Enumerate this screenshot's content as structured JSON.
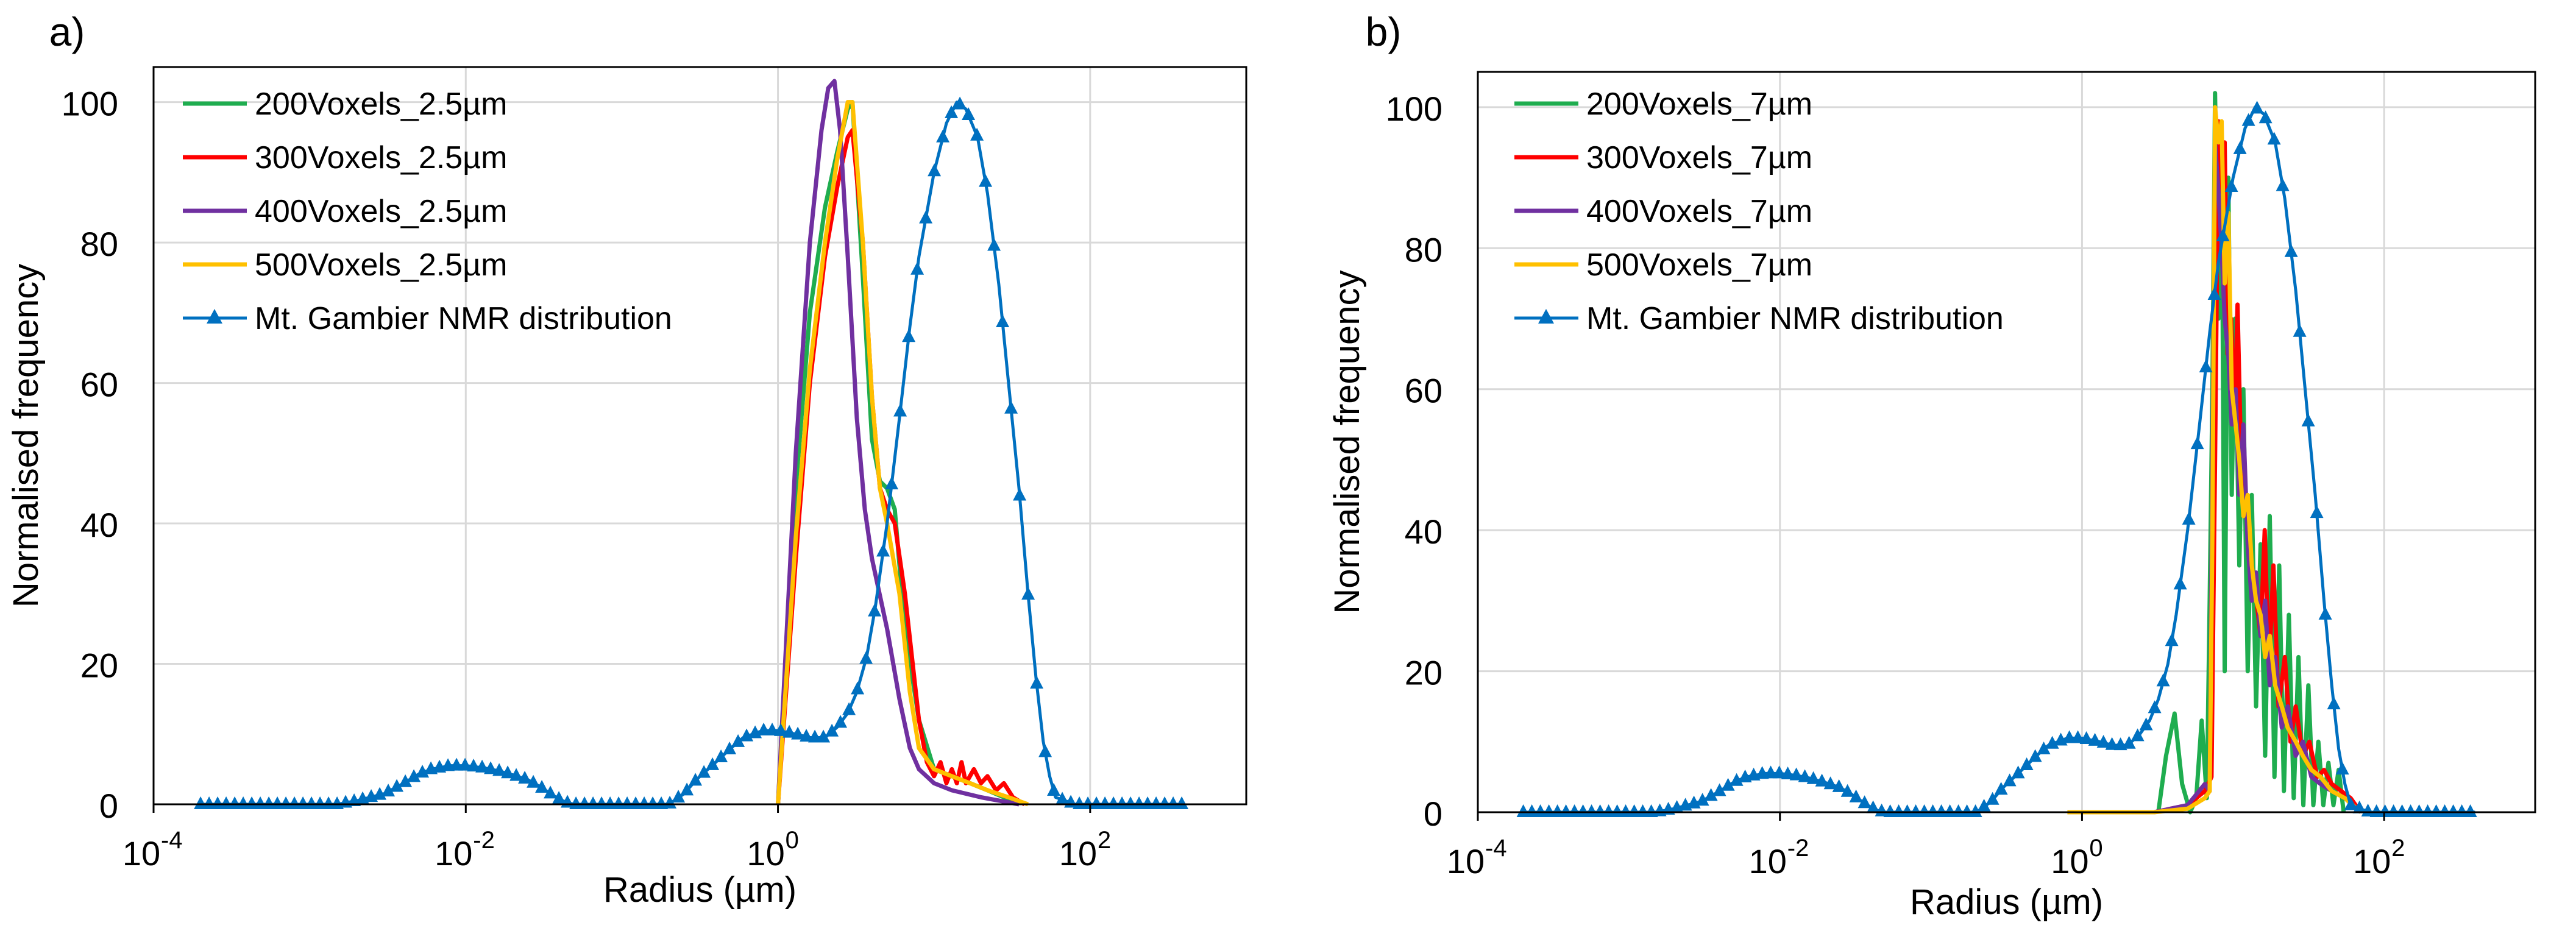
{
  "chart_data": [
    {
      "panel_label": "a)",
      "type": "line",
      "x_scale": "log",
      "xlabel": "Radius (µm)",
      "ylabel": "Normalised frequency",
      "xlim": [
        0.0001,
        1000
      ],
      "ylim": [
        0,
        105
      ],
      "x_ticks": [
        {
          "base": "10",
          "exp": "-4",
          "value": 0.0001
        },
        {
          "base": "10",
          "exp": "-2",
          "value": 0.01
        },
        {
          "base": "10",
          "exp": "0",
          "value": 1
        },
        {
          "base": "10",
          "exp": "2",
          "value": 100
        }
      ],
      "y_ticks": [
        "0",
        "20",
        "40",
        "60",
        "80",
        "100"
      ],
      "grid": true,
      "legend_position": "top-left",
      "series": [
        {
          "name": "200Voxels_2.5µm",
          "color": "#1fad4f",
          "marker": "none",
          "x": [
            1.0,
            1.3,
            1.6,
            2.0,
            2.4,
            2.8,
            3.0,
            3.5,
            4.0,
            4.5,
            5.0,
            5.6,
            6.5,
            8,
            10,
            13,
            17,
            22,
            28,
            35
          ],
          "y": [
            0,
            45,
            70,
            85,
            93,
            99,
            100,
            75,
            52,
            46,
            45,
            42,
            25,
            12,
            5,
            4,
            3,
            2,
            1,
            0
          ]
        },
        {
          "name": "300Voxels_2.5µm",
          "color": "#ff0000",
          "marker": "none",
          "x": [
            1.0,
            1.3,
            1.6,
            2.0,
            2.4,
            2.8,
            3.0,
            3.5,
            4.0,
            4.5,
            5.0,
            5.6,
            6.5,
            8,
            9,
            10,
            11,
            12,
            13,
            14,
            15,
            16,
            18,
            20,
            22,
            25,
            28,
            32,
            38
          ],
          "y": [
            0,
            35,
            60,
            78,
            88,
            95,
            96,
            80,
            58,
            45,
            42,
            40,
            30,
            12,
            6,
            4,
            6,
            3,
            5,
            3,
            6,
            3,
            5,
            3,
            4,
            2,
            3,
            1,
            0
          ]
        },
        {
          "name": "400Voxels_2.5µm",
          "color": "#7030a0",
          "marker": "none",
          "x": [
            1.0,
            1.3,
            1.6,
            1.9,
            2.1,
            2.3,
            2.5,
            2.8,
            3.2,
            3.6,
            4.0,
            5.0,
            6.0,
            7.0,
            8.0,
            10,
            13,
            20,
            35
          ],
          "y": [
            0,
            50,
            80,
            96,
            102,
            103,
            96,
            78,
            55,
            42,
            35,
            25,
            15,
            8,
            5,
            3,
            2,
            1,
            0
          ]
        },
        {
          "name": "500Voxels_2.5µm",
          "color": "#ffc000",
          "marker": "none",
          "x": [
            1.0,
            1.3,
            1.6,
            2.0,
            2.4,
            2.8,
            3.0,
            3.5,
            4.0,
            4.5,
            5.0,
            6.0,
            7.0,
            8.0,
            10,
            13,
            17,
            22,
            30,
            40
          ],
          "y": [
            0,
            38,
            62,
            80,
            92,
            100,
            100,
            80,
            58,
            45,
            40,
            30,
            16,
            8,
            5,
            4,
            3,
            2,
            1,
            0
          ]
        },
        {
          "name": "Mt. Gambier NMR distribution",
          "color": "#0070c0",
          "marker": "triangle",
          "x": [
            0.0002,
            0.0004,
            0.0007,
            0.001,
            0.0015,
            0.002,
            0.003,
            0.004,
            0.005,
            0.006,
            0.008,
            0.01,
            0.013,
            0.016,
            0.02,
            0.025,
            0.03,
            0.035,
            0.04,
            0.045,
            0.05,
            0.06,
            0.1,
            0.15,
            0.2,
            0.25,
            0.3,
            0.4,
            0.5,
            0.6,
            0.8,
            1.0,
            1.3,
            1.6,
            2.0,
            2.4,
            2.8,
            3.2,
            3.7,
            4.2,
            5,
            6,
            7,
            8,
            10,
            12,
            14,
            16,
            19,
            22,
            26,
            30,
            35,
            40,
            45,
            50,
            55,
            60,
            80,
            120,
            200,
            400
          ],
          "y": [
            0,
            0,
            0,
            0,
            0,
            0.5,
            1.5,
            3,
            4.3,
            5,
            5.5,
            5.5,
            5.2,
            4.8,
            4.2,
            3.5,
            2.5,
            1.5,
            0.7,
            0.2,
            0,
            0,
            0,
            0,
            0,
            1.5,
            3.5,
            6,
            8,
            9.5,
            10.5,
            10.5,
            10,
            9.5,
            9.5,
            11,
            13,
            16,
            21,
            28,
            40,
            55,
            68,
            78,
            90,
            97,
            100,
            99,
            95,
            87,
            74,
            60,
            45,
            30,
            18,
            9,
            4,
            1,
            0,
            0,
            0,
            0
          ]
        }
      ]
    },
    {
      "panel_label": "b)",
      "type": "line",
      "x_scale": "log",
      "xlabel": "Radius (µm)",
      "ylabel": "Normalised frequency",
      "xlim": [
        0.0001,
        1000
      ],
      "ylim": [
        0,
        105
      ],
      "x_ticks": [
        {
          "base": "10",
          "exp": "-4",
          "value": 0.0001
        },
        {
          "base": "10",
          "exp": "-2",
          "value": 0.01
        },
        {
          "base": "10",
          "exp": "0",
          "value": 1
        },
        {
          "base": "10",
          "exp": "2",
          "value": 100
        }
      ],
      "y_ticks": [
        "0",
        "20",
        "40",
        "60",
        "80",
        "100"
      ],
      "grid": true,
      "legend_position": "top-left",
      "series": [
        {
          "name": "200Voxels_7µm",
          "color": "#1fad4f",
          "marker": "none",
          "x": [
            3.2,
            3.6,
            4.1,
            4.6,
            5.2,
            5.7,
            6.2,
            6.7,
            7.0,
            7.3,
            7.6,
            8.0,
            8.4,
            8.8,
            9.3,
            9.8,
            10.3,
            11.0,
            11.7,
            12.5,
            13.3,
            14.2,
            15.2,
            16.3,
            17.5,
            18.8,
            20.2,
            21.7,
            23.4,
            25.2,
            27.1,
            29.2,
            31.5,
            34.0,
            36.7,
            39.6,
            42.8,
            46.2,
            50,
            54
          ],
          "y": [
            0,
            8,
            14,
            4,
            0,
            2,
            13,
            2,
            30,
            60,
            102,
            70,
            95,
            20,
            90,
            45,
            70,
            35,
            60,
            20,
            45,
            15,
            38,
            8,
            42,
            5,
            35,
            3,
            28,
            2,
            22,
            1,
            18,
            1,
            10,
            1,
            7,
            1,
            6,
            0
          ]
        },
        {
          "name": "300Voxels_7µm",
          "color": "#ff0000",
          "marker": "none",
          "x": [
            1.0,
            3.0,
            5.0,
            6.5,
            7.2,
            7.6,
            8.0,
            8.4,
            8.8,
            9.2,
            9.7,
            10.2,
            10.7,
            11.3,
            12.0,
            12.7,
            13.5,
            14.3,
            15.2,
            16.2,
            17.3,
            18.5,
            20,
            22,
            24,
            26,
            29,
            32,
            36,
            40,
            45,
            52,
            60,
            70
          ],
          "y": [
            0,
            0,
            1,
            3,
            5,
            50,
            98,
            88,
            95,
            65,
            70,
            55,
            72,
            50,
            45,
            38,
            34,
            30,
            25,
            40,
            20,
            35,
            15,
            22,
            10,
            15,
            8,
            10,
            5,
            6,
            4,
            3,
            2,
            0
          ]
        },
        {
          "name": "400Voxels_7µm",
          "color": "#7030a0",
          "marker": "none",
          "x": [
            1.0,
            3.0,
            5.0,
            6.5,
            7.0,
            7.3,
            7.6,
            8.0,
            8.4,
            8.8,
            9.3,
            9.8,
            10.4,
            11.0,
            11.7,
            12.5,
            13.3,
            14.2,
            15.2,
            16.3,
            17.5,
            19,
            21,
            23,
            26,
            29,
            33,
            38,
            45,
            55,
            70
          ],
          "y": [
            0,
            0,
            1,
            4,
            3,
            50,
            95,
            88,
            80,
            70,
            65,
            55,
            60,
            45,
            55,
            38,
            30,
            34,
            25,
            30,
            18,
            22,
            12,
            15,
            8,
            10,
            5,
            4,
            3,
            2,
            0
          ]
        },
        {
          "name": "500Voxels_7µm",
          "color": "#ffc000",
          "marker": "none",
          "x": [
            0.8,
            1.0,
            3.0,
            5.0,
            6.5,
            7.0,
            7.3,
            7.6,
            8.0,
            8.4,
            8.8,
            9.3,
            9.8,
            10.4,
            11.0,
            11.7,
            12.5,
            13.3,
            14.2,
            15.2,
            16.3,
            17.5,
            19,
            21,
            23,
            26,
            29,
            33,
            38,
            45,
            55,
            70
          ],
          "y": [
            0,
            0,
            0,
            0.5,
            2,
            3,
            40,
            100,
            95,
            98,
            75,
            85,
            60,
            55,
            50,
            42,
            45,
            35,
            30,
            28,
            22,
            25,
            18,
            15,
            12,
            10,
            8,
            6,
            5,
            3,
            2,
            0
          ]
        },
        {
          "name": "Mt. Gambier NMR distribution",
          "color": "#0070c0",
          "marker": "triangle",
          "x": [
            0.0002,
            0.0004,
            0.0007,
            0.001,
            0.0015,
            0.002,
            0.003,
            0.004,
            0.005,
            0.006,
            0.008,
            0.01,
            0.013,
            0.016,
            0.02,
            0.025,
            0.03,
            0.035,
            0.04,
            0.045,
            0.05,
            0.06,
            0.1,
            0.15,
            0.2,
            0.25,
            0.3,
            0.4,
            0.5,
            0.6,
            0.8,
            1.0,
            1.3,
            1.6,
            2.0,
            2.4,
            2.8,
            3.2,
            3.7,
            4.2,
            5,
            6,
            7,
            8,
            10,
            12,
            14,
            16,
            19,
            22,
            26,
            30,
            35,
            40,
            45,
            50,
            55,
            60,
            80,
            120,
            200,
            400
          ],
          "y": [
            0,
            0,
            0,
            0,
            0,
            0.5,
            1.5,
            3,
            4.3,
            5,
            5.5,
            5.5,
            5.2,
            4.8,
            4.2,
            3.5,
            2.5,
            1.5,
            0.7,
            0.2,
            0,
            0,
            0,
            0,
            0,
            1.5,
            3.5,
            6,
            8,
            9.5,
            10.5,
            10.5,
            10,
            9.5,
            9.5,
            11,
            13,
            16,
            21,
            28,
            40,
            55,
            68,
            78,
            90,
            97,
            100,
            99,
            95,
            87,
            74,
            60,
            45,
            30,
            18,
            9,
            4,
            1,
            0,
            0,
            0,
            0
          ]
        }
      ]
    }
  ]
}
